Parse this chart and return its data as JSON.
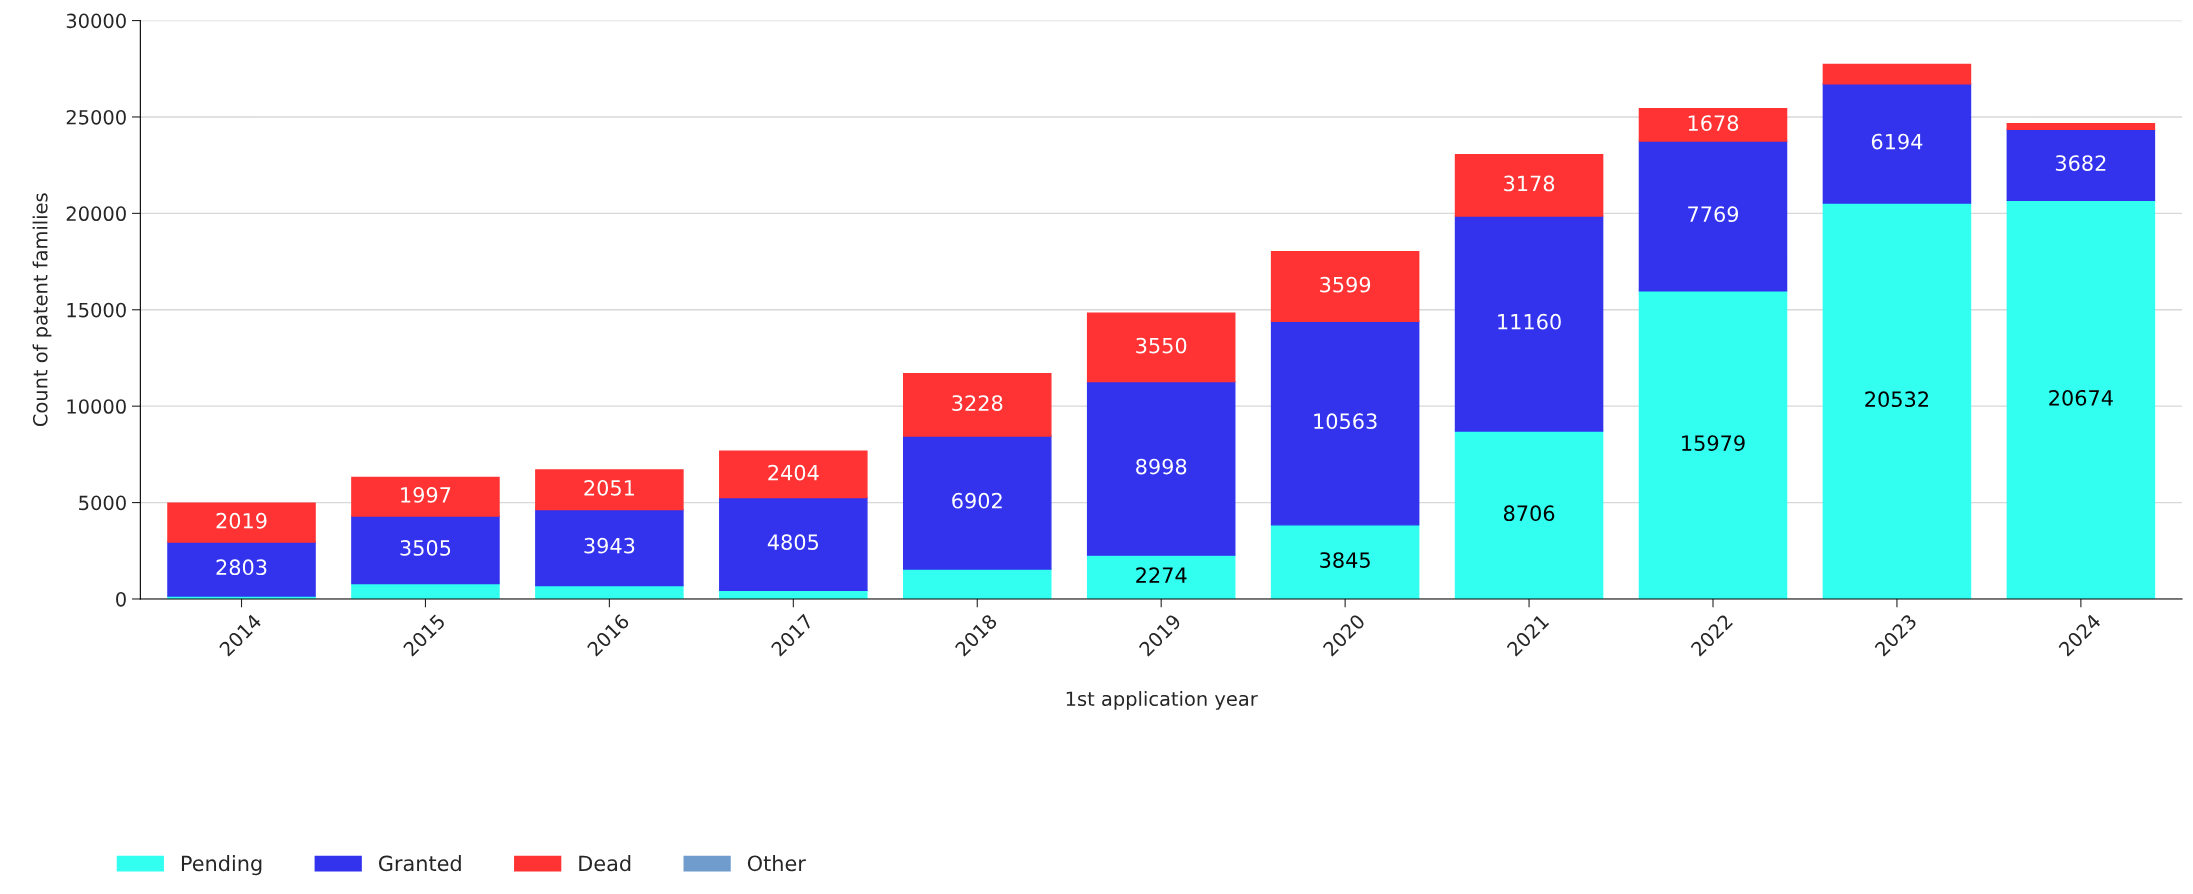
{
  "chart_data": {
    "type": "bar",
    "stacked": true,
    "xlabel": "1st application year",
    "ylabel": "Count of patent families",
    "categories": [
      "2014",
      "2015",
      "2016",
      "2017",
      "2018",
      "2019",
      "2020",
      "2021",
      "2022",
      "2023",
      "2024"
    ],
    "series": [
      {
        "name": "Pending",
        "color": "#33fff0",
        "values": [
          150,
          800,
          700,
          450,
          1550,
          2274,
          3845,
          8706,
          15979,
          20532,
          20674
        ],
        "value_labels": [
          null,
          null,
          null,
          null,
          null,
          "2274",
          "3845",
          "8706",
          "15979",
          "20532",
          "20674"
        ]
      },
      {
        "name": "Granted",
        "color": "#3333ee",
        "values": [
          2803,
          3505,
          3943,
          4805,
          6902,
          8998,
          10563,
          11160,
          7769,
          6194,
          3682
        ],
        "value_labels": [
          "2803",
          "3505",
          "3943",
          "4805",
          "6902",
          "8998",
          "10563",
          "11160",
          "7769",
          "6194",
          "3682"
        ]
      },
      {
        "name": "Dead",
        "color": "#ff3333",
        "values": [
          2019,
          1997,
          2051,
          2404,
          3228,
          3550,
          3599,
          3178,
          1678,
          1000,
          300
        ],
        "value_labels": [
          "2019",
          "1997",
          "2051",
          "2404",
          "3228",
          "3550",
          "3599",
          "3178",
          "1678",
          null,
          null
        ]
      },
      {
        "name": "Other",
        "color": "#6f9ccc",
        "values": [
          null,
          null,
          null,
          null,
          null,
          null,
          null,
          null,
          null,
          null,
          null
        ]
      }
    ],
    "ylim": [
      0,
      30000
    ],
    "yticks": [
      0,
      5000,
      10000,
      15000,
      20000,
      25000,
      30000
    ],
    "grid": "y",
    "legend": "bottom left"
  }
}
